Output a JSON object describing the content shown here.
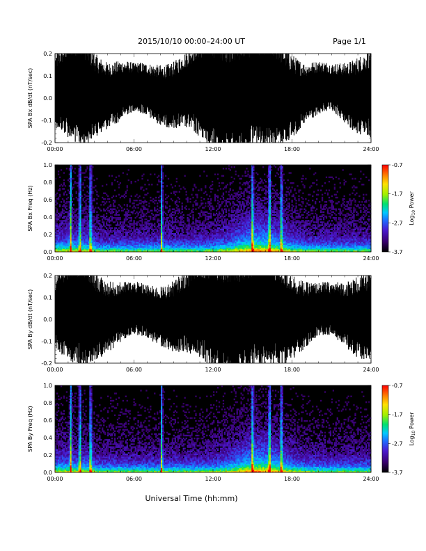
{
  "header": {
    "title": "2015/10/10  00:00–24:00 UT",
    "page": "Page 1/1"
  },
  "footer": {
    "xlabel": "Universal Time (hh:mm)"
  },
  "colors": {
    "trace": "#000000",
    "spectrogram_background": "#000000",
    "colormap": [
      "#000000",
      "#3a0070",
      "#4a1ad0",
      "#1e6cff",
      "#00c8ff",
      "#00e070",
      "#a0f000",
      "#ffe000",
      "#ff8000",
      "#ff0000"
    ]
  },
  "chart_data": [
    {
      "type": "line",
      "ylabel": "SPA Bx dB/dt (nT/sec)",
      "ylim": [
        -0.2,
        0.2
      ],
      "yticks": [
        "-0.2",
        "-0.1",
        "0.0",
        "0.1",
        "0.2"
      ],
      "xlim": [
        "00:00",
        "24:00"
      ],
      "xticks": [
        "00:00",
        "06:00",
        "12:00",
        "18:00",
        "24:00"
      ],
      "note_series": "dense oscillating magnetometer trace",
      "envelope": {
        "x_hours": [
          0,
          1,
          2,
          3,
          4,
          5,
          6,
          7,
          8,
          9,
          10,
          11,
          12,
          13,
          14,
          15,
          16,
          17,
          18,
          19,
          20,
          21,
          22,
          23,
          24
        ],
        "amplitude_nT_per_s": [
          0.12,
          0.17,
          0.2,
          0.14,
          0.11,
          0.1,
          0.08,
          0.09,
          0.1,
          0.11,
          0.13,
          0.17,
          0.2,
          0.2,
          0.2,
          0.19,
          0.19,
          0.18,
          0.14,
          0.1,
          0.09,
          0.08,
          0.1,
          0.13,
          0.15
        ]
      }
    },
    {
      "type": "heatmap",
      "ylabel": "SPA Bx Freq (Hz)",
      "ylim": [
        0.0,
        1.0
      ],
      "yticks": [
        "0.0",
        "0.2",
        "0.4",
        "0.6",
        "0.8",
        "1.0"
      ],
      "xlim": [
        "00:00",
        "24:00"
      ],
      "xticks": [
        "00:00",
        "06:00",
        "12:00",
        "18:00",
        "24:00"
      ],
      "colorbar": {
        "label": "Log10 Power",
        "label_base": "Log",
        "label_sub": "10",
        "label_rest": " Power",
        "range": [
          -3.7,
          -0.7
        ],
        "ticks": [
          "-0.7",
          "-1.7",
          "-2.7",
          "-3.7"
        ]
      },
      "bright_bands_hours": [
        1.2,
        1.9,
        2.7,
        8.1,
        15.0,
        16.3,
        17.2
      ]
    },
    {
      "type": "line",
      "ylabel": "SPA By dB/dt (nT/sec)",
      "ylim": [
        -0.2,
        0.2
      ],
      "yticks": [
        "-0.2",
        "-0.1",
        "0.0",
        "0.1",
        "0.2"
      ],
      "xlim": [
        "00:00",
        "24:00"
      ],
      "xticks": [
        "00:00",
        "06:00",
        "12:00",
        "18:00",
        "24:00"
      ],
      "note_series": "dense oscillating magnetometer trace",
      "envelope": {
        "x_hours": [
          0,
          1,
          2,
          3,
          4,
          5,
          6,
          7,
          8,
          9,
          10,
          11,
          12,
          13,
          14,
          15,
          16,
          17,
          18,
          19,
          20,
          21,
          22,
          23,
          24
        ],
        "amplitude_nT_per_s": [
          0.12,
          0.18,
          0.2,
          0.15,
          0.12,
          0.1,
          0.09,
          0.09,
          0.1,
          0.12,
          0.14,
          0.18,
          0.2,
          0.2,
          0.2,
          0.2,
          0.19,
          0.18,
          0.15,
          0.11,
          0.09,
          0.09,
          0.11,
          0.14,
          0.15
        ]
      }
    },
    {
      "type": "heatmap",
      "ylabel": "SPA By Freq (Hz)",
      "ylim": [
        0.0,
        1.0
      ],
      "yticks": [
        "0.0",
        "0.2",
        "0.4",
        "0.6",
        "0.8",
        "1.0"
      ],
      "xlim": [
        "00:00",
        "24:00"
      ],
      "xticks": [
        "00:00",
        "06:00",
        "12:00",
        "18:00",
        "24:00"
      ],
      "colorbar": {
        "label": "Log10 Power",
        "label_base": "Log",
        "label_sub": "10",
        "label_rest": " Power",
        "range": [
          -3.7,
          -0.7
        ],
        "ticks": [
          "-0.7",
          "-1.7",
          "-2.7",
          "-3.7"
        ]
      },
      "bright_bands_hours": [
        1.2,
        1.9,
        2.7,
        8.1,
        15.0,
        16.3,
        17.2
      ]
    }
  ]
}
